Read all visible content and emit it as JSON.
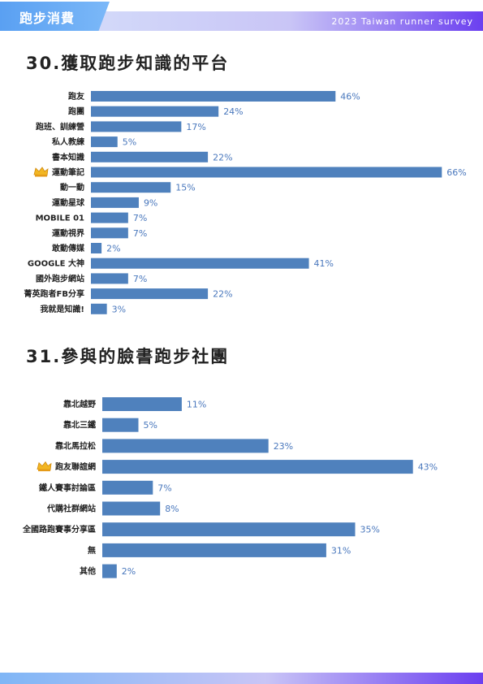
{
  "header": {
    "section_label": "跑步消費",
    "survey_label": "2023 Taiwan runner survey"
  },
  "colors": {
    "bar": "#4f81bd",
    "value_text": "#4a78bd",
    "accent": "#6b3ff0",
    "crown": "#f2b623"
  },
  "highlight_icon": "crown-icon",
  "chart_data": [
    {
      "type": "bar",
      "orientation": "horizontal",
      "title": "30.獲取跑步知識的平台",
      "categories": [
        "跑友",
        "跑團",
        "跑班、訓練營",
        "私人教練",
        "書本知識",
        "運動筆記",
        "動一動",
        "運動星球",
        "MOBILE 01",
        "運動視界",
        "敢動傳媒",
        "GOOGLE 大神",
        "國外跑步網站",
        "菁英跑者FB分享",
        "我就是知識!"
      ],
      "values": [
        46,
        24,
        17,
        5,
        22,
        66,
        15,
        9,
        7,
        7,
        2,
        41,
        7,
        22,
        3
      ],
      "labels": [
        "46%",
        "24%",
        "17%",
        "5%",
        "22%",
        "66%",
        "15%",
        "9%",
        "7%",
        "7%",
        "2%",
        "41%",
        "7%",
        "22%",
        "3%"
      ],
      "highlight_index": 5,
      "unit": "%"
    },
    {
      "type": "bar",
      "orientation": "horizontal",
      "title": "31.參與的臉書跑步社團",
      "categories": [
        "靠北越野",
        "靠北三鐵",
        "靠北馬拉松",
        "跑友聯誼網",
        "鐵人賽事討論區",
        "代購社群網站",
        "全國路跑賽事分享區",
        "無",
        "其他"
      ],
      "values": [
        11,
        5,
        23,
        43,
        7,
        8,
        35,
        31,
        2
      ],
      "labels": [
        "11%",
        "5%",
        "23%",
        "43%",
        "7%",
        "8%",
        "35%",
        "31%",
        "2%"
      ],
      "highlight_index": 3,
      "unit": "%"
    }
  ]
}
